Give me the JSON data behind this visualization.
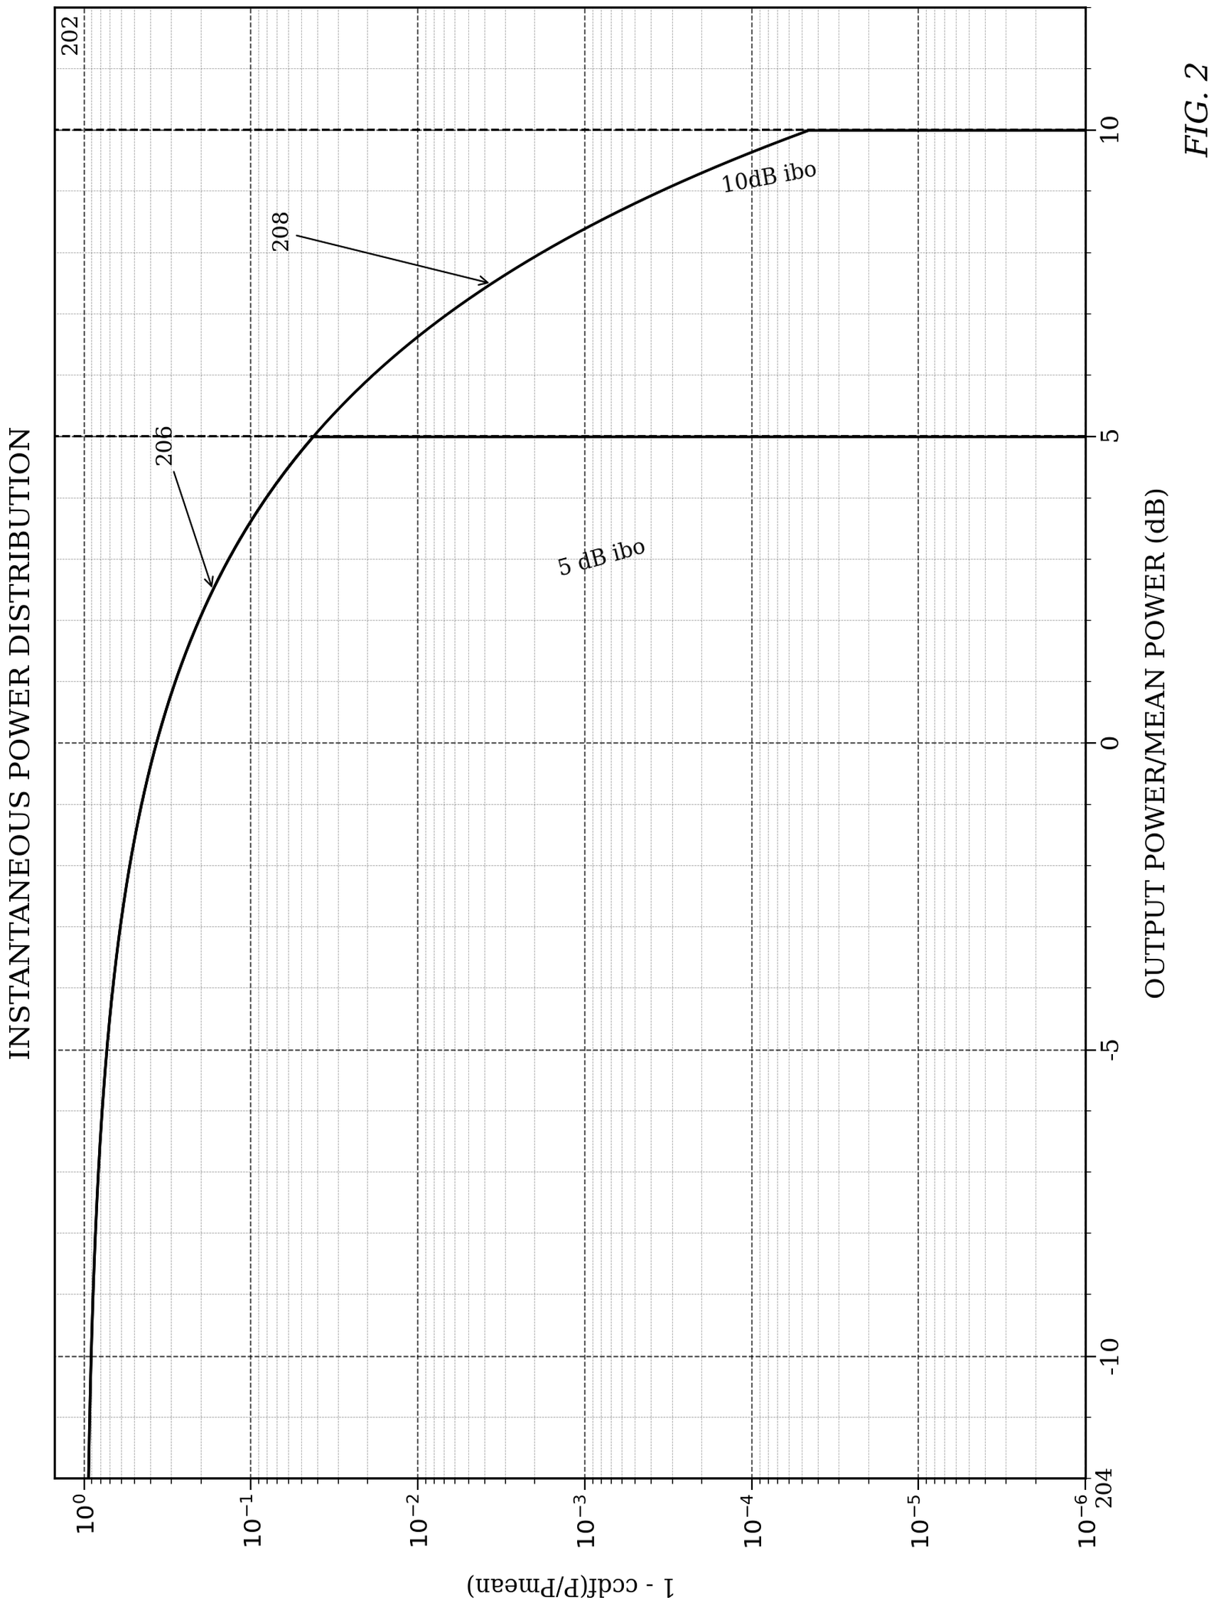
{
  "title": "INSTANTANEOUS POWER DISTRIBUTION",
  "xlabel": "OUTPUT POWER/MEAN POWER (dB)",
  "ylabel": "1 - ccdf(P/Pmean)",
  "xlim": [
    -12,
    12
  ],
  "ylim_low": 1e-06,
  "ylim_high": 1.5,
  "xticks": [
    -10,
    -5,
    0,
    5,
    10
  ],
  "curve1_label": "5 dB ibo",
  "curve1_ref": "206",
  "curve2_label": "10dB ibo",
  "curve2_ref": "208",
  "curve1_ibo_db": 5,
  "curve2_ibo_db": 10,
  "ref_202": "202",
  "ref_204": "204",
  "fig_label": "FIG. 2",
  "background_color": "#ffffff",
  "line_color": "#000000"
}
